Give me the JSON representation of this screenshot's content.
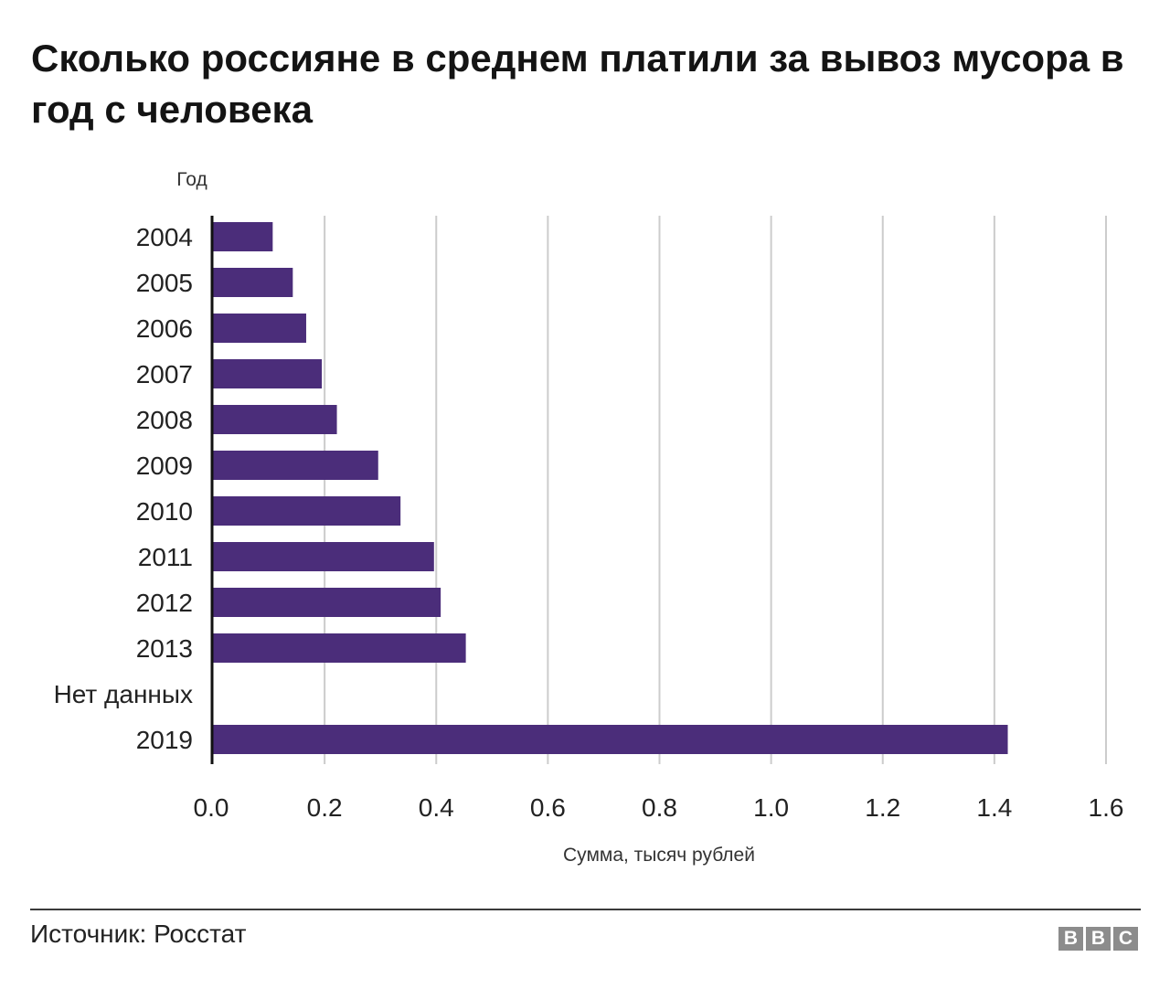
{
  "header": {
    "title": "Сколько россияне в среднем платили за вывоз мусора в год с человека"
  },
  "chart_data": {
    "type": "bar",
    "orientation": "horizontal",
    "categories": [
      "2004",
      "2005",
      "2006",
      "2007",
      "2008",
      "2009",
      "2010",
      "2011",
      "2012",
      "2013",
      "Нет данных",
      "2019"
    ],
    "values": [
      0.107,
      0.143,
      0.167,
      0.195,
      0.222,
      0.296,
      0.336,
      0.396,
      0.408,
      0.453,
      null,
      1.424
    ],
    "xlabel": "Сумма, тысяч рублей",
    "ylabel": "Год",
    "xlim": [
      0,
      1.6
    ],
    "xticks": [
      "0.0",
      "0.2",
      "0.4",
      "0.6",
      "0.8",
      "1.0",
      "1.2",
      "1.4",
      "1.6"
    ],
    "grid": "vertical",
    "bar_color": "#4b2d7a",
    "grid_color": "#cccccc"
  },
  "footer": {
    "source": "Источник: Росстат",
    "logo": [
      "B",
      "B",
      "C"
    ]
  }
}
